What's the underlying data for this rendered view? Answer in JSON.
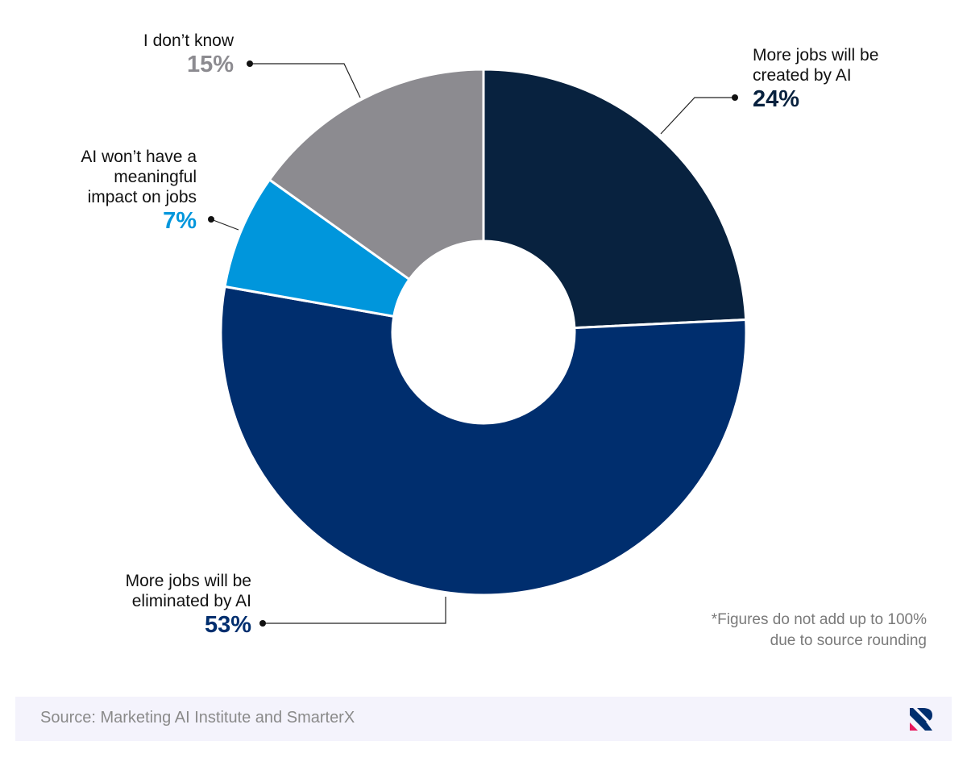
{
  "chart_data": {
    "type": "pie",
    "donut": true,
    "slices": [
      {
        "label": "More jobs will be created by AI",
        "label_lines": [
          "More jobs will be",
          "created by AI"
        ],
        "value": 24,
        "display": "24%",
        "color": "#08223f",
        "label_color": "#08223f"
      },
      {
        "label": "More jobs will be eliminated by AI",
        "label_lines": [
          "More jobs will be",
          "eliminated by AI"
        ],
        "value": 53,
        "display": "53%",
        "color": "#002e6e",
        "label_color": "#002e6e"
      },
      {
        "label": "AI won't have a meaningful impact on jobs",
        "label_lines": [
          "AI won’t have a",
          "meaningful",
          "impact on jobs"
        ],
        "value": 7,
        "display": "7%",
        "color": "#0096dc",
        "label_color": "#0096dc"
      },
      {
        "label": "I don't know",
        "label_lines": [
          "I don’t know"
        ],
        "value": 15,
        "display": "15%",
        "color": "#8c8b90",
        "label_color": "#8c8b90"
      }
    ],
    "start": "top",
    "direction": "clockwise",
    "note_lines": [
      "*Figures do not add up to 100%",
      "due to source rounding"
    ]
  },
  "footer": {
    "source": "Source: Marketing AI Institute and SmarterX"
  }
}
